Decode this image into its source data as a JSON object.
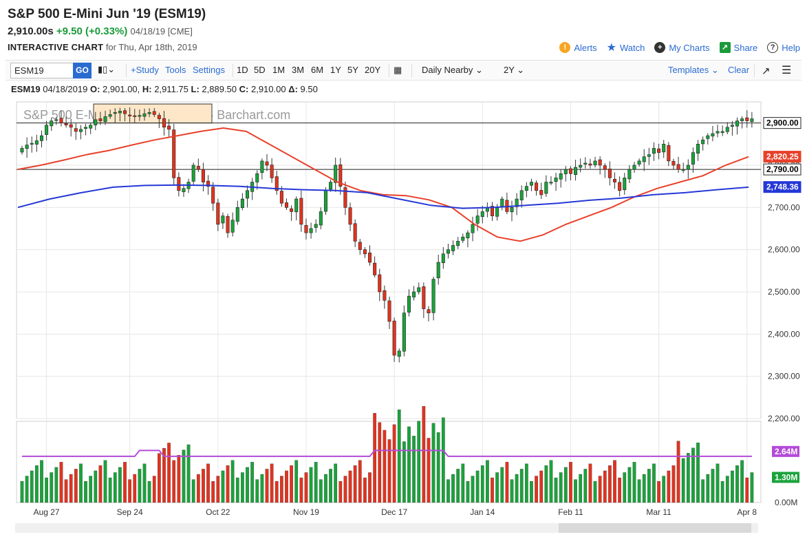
{
  "header": {
    "title": "S&P 500 E-Mini Jun '19 (ESM19)",
    "last": "2,910.00s",
    "change": "+9.50 (+0.33%)",
    "meta": "04/18/19 [CME]",
    "chart_label": "INTERACTIVE CHART",
    "chart_for": "for Thu, Apr 18th, 2019"
  },
  "tools": {
    "alerts": "Alerts",
    "watch": "Watch",
    "my_charts": "My Charts",
    "share": "Share",
    "help": "Help"
  },
  "toolbar": {
    "symbol": "ESM19",
    "go": "GO",
    "study": "+Study",
    "tools_label": "Tools",
    "settings": "Settings",
    "periods": [
      "1D",
      "5D",
      "1M",
      "3M",
      "6M",
      "1Y",
      "5Y",
      "20Y"
    ],
    "interval": "Daily Nearby",
    "range": "2Y",
    "templates": "Templates",
    "clear": "Clear"
  },
  "ohlc": {
    "symbol": "ESM19",
    "date": "04/18/2019",
    "o_label": "O:",
    "o": "2,901.00",
    "h_label": "H:",
    "h": "2,911.75",
    "l_label": "L:",
    "l": "2,889.50",
    "c_label": "C:",
    "c": "2,910.00",
    "d_label": "Δ:",
    "d": "9.50"
  },
  "colors": {
    "up": "#1aa33b",
    "down": "#e2331f",
    "ma_short": "#e8402a",
    "ma_long": "#2438d6",
    "vol_avg": "#b44ad8"
  },
  "chart_data": {
    "type": "candlestick",
    "watermark": "S&P 500 E-Mini Jun '19 (ESM19) - Barchart.com",
    "ylim": [
      2200,
      2950
    ],
    "y_ticks": [
      "2,200.00",
      "2,300.00",
      "2,400.00",
      "2,500.00",
      "2,600.00",
      "2,700.00",
      "2,800.00"
    ],
    "x_ticks": [
      "Aug 27",
      "Sep 24",
      "Oct 22",
      "Nov 19",
      "Dec 17",
      "Jan 14",
      "Feb 11",
      "Mar 11",
      "Apr 8"
    ],
    "price_badges": [
      {
        "label": "2,900.00",
        "value": 2900,
        "color": "#000000"
      },
      {
        "label": "2,820.25",
        "value": 2820.25,
        "color": "#e8402a"
      },
      {
        "label": "2,790.00",
        "value": 2790,
        "color": "#000000"
      },
      {
        "label": "2,748.36",
        "value": 2748.36,
        "color": "#2438d6"
      }
    ],
    "hlines": [
      2900,
      2790
    ],
    "closes": [
      2840,
      2848,
      2852,
      2858,
      2870,
      2895,
      2905,
      2908,
      2900,
      2895,
      2890,
      2880,
      2885,
      2890,
      2895,
      2908,
      2905,
      2915,
      2920,
      2925,
      2928,
      2922,
      2918,
      2915,
      2918,
      2922,
      2925,
      2920,
      2910,
      2890,
      2885,
      2770,
      2740,
      2745,
      2760,
      2800,
      2790,
      2760,
      2750,
      2710,
      2660,
      2680,
      2640,
      2670,
      2700,
      2720,
      2740,
      2760,
      2780,
      2810,
      2800,
      2770,
      2740,
      2710,
      2700,
      2690,
      2720,
      2660,
      2640,
      2650,
      2660,
      2690,
      2740,
      2760,
      2800,
      2750,
      2700,
      2660,
      2620,
      2600,
      2590,
      2570,
      2540,
      2500,
      2480,
      2430,
      2350,
      2360,
      2450,
      2490,
      2500,
      2510,
      2460,
      2450,
      2530,
      2570,
      2590,
      2600,
      2610,
      2620,
      2630,
      2640,
      2660,
      2680,
      2690,
      2700,
      2680,
      2700,
      2720,
      2690,
      2700,
      2720,
      2740,
      2750,
      2760,
      2740,
      2730,
      2760,
      2760,
      2770,
      2780,
      2790,
      2780,
      2795,
      2800,
      2805,
      2800,
      2810,
      2800,
      2790,
      2770,
      2760,
      2740,
      2770,
      2790,
      2800,
      2810,
      2820,
      2825,
      2840,
      2830,
      2850,
      2810,
      2800,
      2790,
      2790,
      2800,
      2830,
      2850,
      2860,
      2870,
      2875,
      2880,
      2880,
      2890,
      2895,
      2905,
      2910,
      2905,
      2910
    ],
    "ma_short_values": [
      2790,
      2800,
      2812,
      2825,
      2835,
      2848,
      2860,
      2870,
      2880,
      2888,
      2880,
      2850,
      2820,
      2790,
      2760,
      2740,
      2730,
      2728,
      2718,
      2700,
      2660,
      2630,
      2620,
      2635,
      2660,
      2680,
      2700,
      2725,
      2745,
      2760,
      2775,
      2800,
      2820
    ],
    "ma_long_values": [
      2700,
      2720,
      2735,
      2748,
      2752,
      2753,
      2752,
      2750,
      2745,
      2742,
      2740,
      2735,
      2720,
      2705,
      2698,
      2700,
      2705,
      2710,
      2717,
      2722,
      2730,
      2735,
      2742,
      2748
    ],
    "volume_avg": "2.64M",
    "volume_last": "1.30M",
    "volume_zero": "0.00M",
    "volume_avg_value": 2.64,
    "volume_last_value": 1.3,
    "volume_ylim": [
      0,
      4.2
    ]
  }
}
